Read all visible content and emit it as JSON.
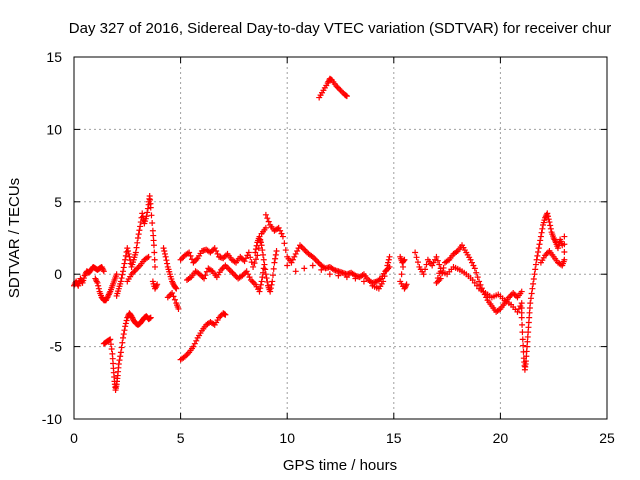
{
  "chart_data": {
    "type": "scatter",
    "title": "Day 327 of 2016, Sidereal Day-to-day VTEC variation (SDTVAR) for receiver chur",
    "xlabel": "GPS time / hours",
    "ylabel": "SDTVAR / TECUs",
    "xlim": [
      0,
      25
    ],
    "ylim": [
      -10,
      15
    ],
    "xticks": [
      0,
      5,
      10,
      15,
      20,
      25
    ],
    "yticks": [
      -10,
      -5,
      0,
      5,
      10,
      15
    ],
    "grid": true,
    "marker": "+",
    "marker_color": "#ff0000",
    "series": [
      {
        "name": "SDTVAR",
        "color": "#ff0000",
        "points": [
          [
            0.0,
            -0.8
          ],
          [
            0.1,
            -0.5
          ],
          [
            0.2,
            -0.8
          ],
          [
            0.3,
            -0.3
          ],
          [
            0.4,
            -0.6
          ],
          [
            0.5,
            -0.1
          ],
          [
            0.6,
            0.2
          ],
          [
            0.7,
            0.1
          ],
          [
            0.8,
            0.3
          ],
          [
            0.9,
            0.5
          ],
          [
            1.0,
            0.4
          ],
          [
            1.1,
            0.3
          ],
          [
            1.2,
            0.4
          ],
          [
            1.3,
            0.5
          ],
          [
            1.4,
            0.2
          ],
          [
            1.0,
            -0.3
          ],
          [
            1.1,
            -0.6
          ],
          [
            1.2,
            -1.2
          ],
          [
            1.3,
            -1.6
          ],
          [
            1.4,
            -1.8
          ],
          [
            1.5,
            -1.8
          ],
          [
            1.6,
            -1.5
          ],
          [
            1.7,
            -1.2
          ],
          [
            1.8,
            -0.8
          ],
          [
            1.9,
            -0.4
          ],
          [
            2.0,
            0.0
          ],
          [
            1.4,
            -4.8
          ],
          [
            1.5,
            -4.7
          ],
          [
            1.6,
            -4.6
          ],
          [
            1.7,
            -4.5
          ],
          [
            1.8,
            -5.5
          ],
          [
            1.85,
            -6.5
          ],
          [
            1.9,
            -7.4
          ],
          [
            1.95,
            -8.0
          ],
          [
            2.0,
            -7.6
          ],
          [
            2.05,
            -7.0
          ],
          [
            2.1,
            -6.2
          ],
          [
            2.2,
            -5.4
          ],
          [
            2.3,
            -4.4
          ],
          [
            2.4,
            -3.6
          ],
          [
            2.5,
            -3.0
          ],
          [
            2.6,
            -2.7
          ],
          [
            2.7,
            -2.9
          ],
          [
            2.8,
            -3.2
          ],
          [
            2.9,
            -3.4
          ],
          [
            3.0,
            -3.5
          ],
          [
            3.1,
            -3.4
          ],
          [
            3.2,
            -3.2
          ],
          [
            3.3,
            -3.0
          ],
          [
            3.4,
            -2.9
          ],
          [
            3.5,
            -3.1
          ],
          [
            3.6,
            -3.0
          ],
          [
            2.0,
            -1.5
          ],
          [
            2.1,
            -1.0
          ],
          [
            2.2,
            -0.5
          ],
          [
            2.3,
            0.2
          ],
          [
            2.4,
            1.0
          ],
          [
            2.5,
            1.8
          ],
          [
            2.6,
            1.2
          ],
          [
            2.7,
            0.5
          ],
          [
            2.8,
            1.0
          ],
          [
            2.9,
            1.5
          ],
          [
            3.0,
            2.5
          ],
          [
            3.1,
            3.3
          ],
          [
            3.2,
            4.2
          ],
          [
            3.3,
            3.5
          ],
          [
            3.4,
            4.0
          ],
          [
            3.5,
            4.8
          ],
          [
            3.55,
            5.4
          ],
          [
            3.6,
            4.6
          ],
          [
            3.7,
            3.0
          ],
          [
            3.75,
            2.0
          ],
          [
            3.8,
            0.5
          ],
          [
            2.5,
            -0.5
          ],
          [
            2.7,
            0.0
          ],
          [
            2.9,
            0.3
          ],
          [
            3.1,
            0.6
          ],
          [
            3.3,
            1.0
          ],
          [
            3.5,
            1.2
          ],
          [
            3.7,
            -0.5
          ],
          [
            3.8,
            -1.0
          ],
          [
            3.9,
            -0.7
          ],
          [
            4.2,
            1.8
          ],
          [
            4.3,
            1.2
          ],
          [
            4.4,
            0.5
          ],
          [
            4.5,
            0.0
          ],
          [
            4.6,
            -0.5
          ],
          [
            4.7,
            -0.8
          ],
          [
            4.8,
            -1.0
          ],
          [
            4.4,
            -1.6
          ],
          [
            4.6,
            -1.3
          ],
          [
            4.8,
            -2.0
          ],
          [
            4.9,
            -2.4
          ],
          [
            5.0,
            1.0
          ],
          [
            5.2,
            1.3
          ],
          [
            5.4,
            1.5
          ],
          [
            5.6,
            0.8
          ],
          [
            5.8,
            1.1
          ],
          [
            6.0,
            1.6
          ],
          [
            6.2,
            1.7
          ],
          [
            6.4,
            1.5
          ],
          [
            6.6,
            1.8
          ],
          [
            6.8,
            1.2
          ],
          [
            7.0,
            1.1
          ],
          [
            7.2,
            1.4
          ],
          [
            7.4,
            1.0
          ],
          [
            7.6,
            0.8
          ],
          [
            7.8,
            1.2
          ],
          [
            8.0,
            0.9
          ],
          [
            8.2,
            1.5
          ],
          [
            8.4,
            0.5
          ],
          [
            8.6,
            1.3
          ],
          [
            8.8,
            2.8
          ],
          [
            9.0,
            3.2
          ],
          [
            5.3,
            -0.4
          ],
          [
            5.5,
            -0.2
          ],
          [
            5.7,
            0.2
          ],
          [
            5.9,
            0.0
          ],
          [
            6.1,
            -0.3
          ],
          [
            6.3,
            0.4
          ],
          [
            6.5,
            0.2
          ],
          [
            6.7,
            -0.2
          ],
          [
            6.9,
            0.3
          ],
          [
            7.1,
            0.6
          ],
          [
            7.3,
            0.3
          ],
          [
            7.5,
            0.0
          ],
          [
            7.7,
            -0.3
          ],
          [
            7.9,
            -0.1
          ],
          [
            8.1,
            0.2
          ],
          [
            8.3,
            -0.4
          ],
          [
            8.5,
            -0.7
          ],
          [
            8.7,
            -1.2
          ],
          [
            8.8,
            -0.5
          ],
          [
            8.9,
            0.4
          ],
          [
            5.0,
            -5.9
          ],
          [
            5.2,
            -5.7
          ],
          [
            5.4,
            -5.4
          ],
          [
            5.6,
            -5.0
          ],
          [
            5.8,
            -4.4
          ],
          [
            6.0,
            -3.9
          ],
          [
            6.2,
            -3.5
          ],
          [
            6.4,
            -3.3
          ],
          [
            6.6,
            -3.5
          ],
          [
            6.8,
            -3.0
          ],
          [
            7.0,
            -2.7
          ],
          [
            7.1,
            -2.8
          ],
          [
            8.5,
            1.5
          ],
          [
            8.6,
            2.2
          ],
          [
            8.7,
            2.6
          ],
          [
            8.8,
            2.0
          ],
          [
            8.9,
            1.0
          ],
          [
            9.0,
            0.0
          ],
          [
            9.1,
            -0.8
          ],
          [
            9.2,
            -1.2
          ],
          [
            9.3,
            -0.5
          ],
          [
            9.4,
            0.8
          ],
          [
            9.5,
            1.6
          ],
          [
            9.0,
            4.1
          ],
          [
            9.2,
            3.4
          ],
          [
            9.4,
            3.0
          ],
          [
            9.6,
            3.2
          ],
          [
            9.8,
            2.6
          ],
          [
            10.0,
            1.2
          ],
          [
            10.2,
            0.8
          ],
          [
            10.4,
            1.4
          ],
          [
            10.6,
            2.0
          ],
          [
            10.8,
            1.7
          ],
          [
            11.0,
            1.4
          ],
          [
            11.2,
            1.2
          ],
          [
            11.4,
            0.9
          ],
          [
            11.6,
            0.6
          ],
          [
            11.8,
            0.4
          ],
          [
            12.0,
            0.5
          ],
          [
            12.2,
            0.3
          ],
          [
            12.4,
            0.2
          ],
          [
            12.6,
            0.1
          ],
          [
            12.8,
            0.0
          ],
          [
            13.0,
            0.1
          ],
          [
            13.2,
            -0.1
          ],
          [
            13.4,
            -0.2
          ],
          [
            13.6,
            0.0
          ],
          [
            13.8,
            -0.4
          ],
          [
            14.0,
            -0.6
          ],
          [
            14.2,
            -0.5
          ],
          [
            14.4,
            -0.3
          ],
          [
            14.6,
            0.2
          ],
          [
            14.8,
            0.5
          ],
          [
            10.0,
            0.6
          ],
          [
            10.4,
            0.2
          ],
          [
            10.8,
            0.4
          ],
          [
            11.2,
            0.6
          ],
          [
            11.6,
            0.3
          ],
          [
            12.0,
            0.0
          ],
          [
            12.4,
            -0.1
          ],
          [
            12.8,
            -0.2
          ],
          [
            13.2,
            -0.3
          ],
          [
            13.6,
            -0.5
          ],
          [
            14.0,
            -0.8
          ],
          [
            14.3,
            -1.0
          ],
          [
            14.5,
            -0.5
          ],
          [
            14.7,
            0.6
          ],
          [
            14.8,
            1.2
          ],
          [
            11.5,
            12.2
          ],
          [
            11.7,
            12.7
          ],
          [
            11.9,
            13.2
          ],
          [
            12.0,
            13.5
          ],
          [
            12.1,
            13.4
          ],
          [
            12.3,
            13.0
          ],
          [
            12.5,
            12.7
          ],
          [
            12.7,
            12.4
          ],
          [
            12.8,
            12.3
          ],
          [
            15.3,
            1.2
          ],
          [
            15.4,
            0.8
          ],
          [
            15.5,
            1.0
          ],
          [
            15.3,
            -0.5
          ],
          [
            15.5,
            -1.0
          ],
          [
            15.6,
            -0.7
          ],
          [
            16.0,
            1.5
          ],
          [
            16.2,
            0.5
          ],
          [
            16.4,
            0.0
          ],
          [
            16.6,
            1.0
          ],
          [
            16.8,
            0.6
          ],
          [
            17.0,
            1.2
          ],
          [
            17.2,
            0.4
          ],
          [
            17.0,
            -0.6
          ],
          [
            17.2,
            -0.3
          ],
          [
            17.4,
            0.8
          ],
          [
            17.6,
            1.0
          ],
          [
            17.8,
            1.4
          ],
          [
            18.0,
            1.6
          ],
          [
            18.2,
            2.0
          ],
          [
            18.4,
            1.5
          ],
          [
            18.6,
            1.0
          ],
          [
            18.8,
            0.4
          ],
          [
            19.0,
            -0.5
          ],
          [
            19.2,
            -1.2
          ],
          [
            19.4,
            -1.8
          ],
          [
            19.6,
            -2.2
          ],
          [
            19.8,
            -2.6
          ],
          [
            20.0,
            -2.4
          ],
          [
            20.2,
            -2.0
          ],
          [
            20.4,
            -1.6
          ],
          [
            20.6,
            -1.3
          ],
          [
            20.8,
            -1.6
          ],
          [
            21.0,
            -1.2
          ],
          [
            17.2,
            0.2
          ],
          [
            17.5,
            0.0
          ],
          [
            17.8,
            0.5
          ],
          [
            18.1,
            0.3
          ],
          [
            18.4,
            0.0
          ],
          [
            18.7,
            -0.4
          ],
          [
            19.0,
            -1.0
          ],
          [
            19.3,
            -1.3
          ],
          [
            19.6,
            -1.6
          ],
          [
            19.9,
            -1.4
          ],
          [
            20.2,
            -1.8
          ],
          [
            20.5,
            -2.1
          ],
          [
            20.8,
            -2.6
          ],
          [
            21.0,
            -2.0
          ],
          [
            21.0,
            -3.0
          ],
          [
            21.05,
            -4.5
          ],
          [
            21.1,
            -5.8
          ],
          [
            21.15,
            -6.6
          ],
          [
            21.2,
            -6.0
          ],
          [
            21.25,
            -5.0
          ],
          [
            21.3,
            -4.0
          ],
          [
            21.35,
            -3.0
          ],
          [
            21.4,
            -2.0
          ],
          [
            21.5,
            -1.0
          ],
          [
            21.6,
            0.0
          ],
          [
            21.7,
            1.0
          ],
          [
            21.8,
            1.8
          ],
          [
            21.9,
            2.6
          ],
          [
            22.0,
            3.4
          ],
          [
            22.1,
            3.9
          ],
          [
            22.2,
            4.2
          ],
          [
            22.3,
            3.6
          ],
          [
            22.4,
            2.9
          ],
          [
            22.5,
            2.5
          ],
          [
            22.6,
            2.2
          ],
          [
            22.7,
            1.8
          ],
          [
            22.8,
            2.4
          ],
          [
            22.9,
            2.0
          ],
          [
            21.9,
            0.8
          ],
          [
            22.1,
            1.3
          ],
          [
            22.3,
            1.6
          ],
          [
            22.5,
            1.2
          ],
          [
            22.7,
            0.8
          ],
          [
            22.9,
            0.6
          ],
          [
            23.0,
            1.0
          ],
          [
            23.0,
            2.6
          ]
        ]
      }
    ]
  }
}
